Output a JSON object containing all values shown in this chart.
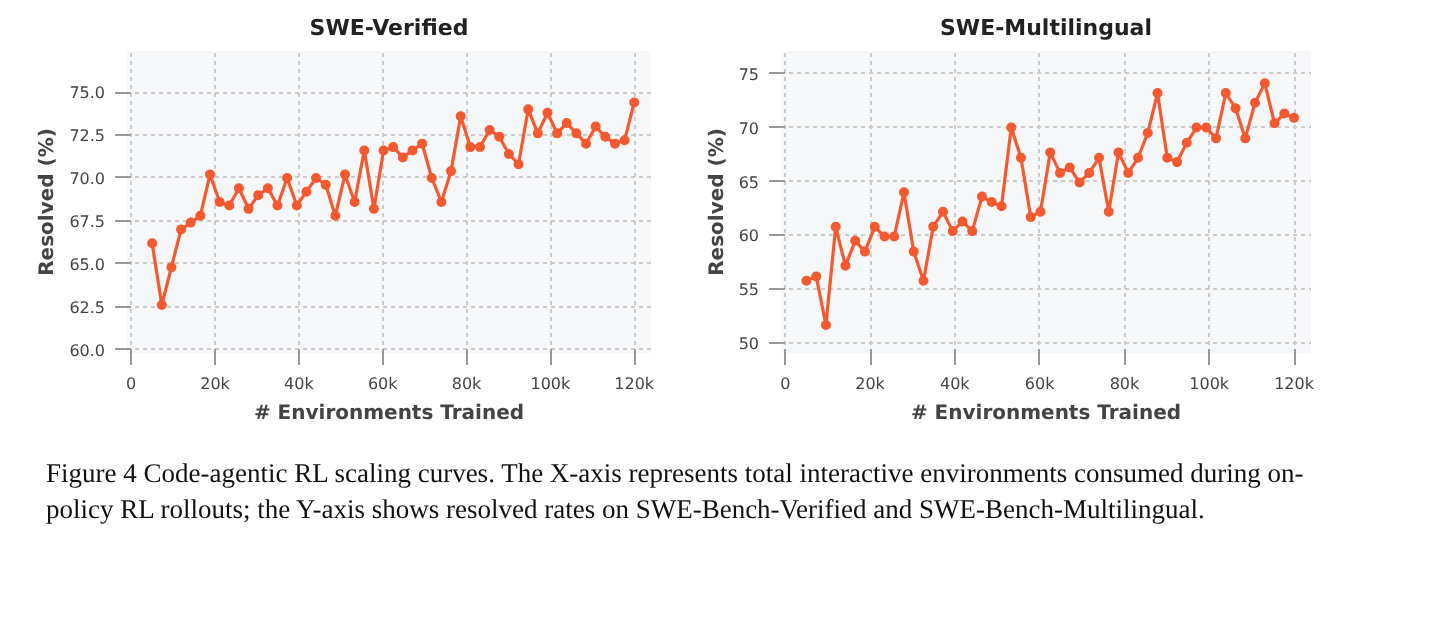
{
  "chart_data": [
    {
      "type": "line",
      "title": "SWE-Verified",
      "xlabel": "# Environments Trained",
      "ylabel": "Resolved (%)",
      "x": [
        5000,
        7300,
        9600,
        11900,
        14200,
        16500,
        18800,
        21100,
        23400,
        25700,
        28000,
        30300,
        32600,
        34900,
        37200,
        39500,
        41800,
        44100,
        46400,
        48700,
        51000,
        53300,
        55600,
        57900,
        60200,
        62500,
        64800,
        67100,
        69400,
        71700,
        74000,
        76300,
        78600,
        80900,
        83200,
        85500,
        87800,
        90100,
        92400,
        94700,
        97000,
        99300,
        101600,
        103900,
        106200,
        108500,
        110800,
        113100,
        115400,
        117700,
        120000
      ],
      "series": [
        {
          "color": "#f4592f",
          "values": [
            66.2,
            62.6,
            64.8,
            67.0,
            67.4,
            67.8,
            70.2,
            68.6,
            68.4,
            69.4,
            68.2,
            69.0,
            69.4,
            68.4,
            70.0,
            68.4,
            69.2,
            70.0,
            69.6,
            67.8,
            70.2,
            68.6,
            71.6,
            68.2,
            71.6,
            71.8,
            71.2,
            71.6,
            72.0,
            70.0,
            68.6,
            70.4,
            73.6,
            71.8,
            71.8,
            72.8,
            72.4,
            71.4,
            70.8,
            74.0,
            72.6,
            73.8,
            72.6,
            73.2,
            72.6,
            72.0,
            73.0,
            72.4,
            72.0,
            72.2,
            74.4
          ]
        }
      ],
      "xlim": [
        -1000,
        124000
      ],
      "ylim": [
        59.8,
        77.4
      ],
      "xticks": [
        0,
        {
          "value": 20000,
          "label": "20k"
        },
        {
          "value": 40000,
          "label": "40k"
        },
        {
          "value": 60000,
          "label": "60k"
        },
        {
          "value": 80000,
          "label": "80k"
        },
        {
          "value": 100000,
          "label": "100k"
        },
        {
          "value": 120000,
          "label": "120k"
        }
      ],
      "yticks": [
        {
          "value": 60,
          "label": "60.0"
        },
        {
          "value": 62.5,
          "label": "62.5"
        },
        {
          "value": 65,
          "label": "65.0"
        },
        {
          "value": 67.5,
          "label": "67.5"
        },
        {
          "value": 70,
          "label": "70.0"
        },
        {
          "value": 72.5,
          "label": "72.5"
        },
        {
          "value": 75,
          "label": "75.0"
        }
      ],
      "grid": true,
      "marker": "circle",
      "line_style": "solid",
      "annotations": [
        "Figure 4  Code-agentic RL scaling curves. The X-axis represents total interactive environments consumed during on-policy RL rollouts; the Y-axis shows resolved rates on SWE-Bench-Verified and SWE-Bench-Multilingual."
      ]
    },
    {
      "type": "line",
      "title": "SWE-Multilingual",
      "xlabel": "# Environments Trained",
      "ylabel": "Resolved (%)",
      "x": [
        5000,
        7300,
        9600,
        11900,
        14200,
        16500,
        18800,
        21100,
        23400,
        25700,
        28000,
        30300,
        32600,
        34900,
        37200,
        39500,
        41800,
        44100,
        46400,
        48700,
        51000,
        53300,
        55600,
        57900,
        60200,
        62500,
        64800,
        67100,
        69400,
        71700,
        74000,
        76300,
        78600,
        80900,
        83200,
        85500,
        87800,
        90100,
        92400,
        94700,
        97000,
        99300,
        101600,
        103900,
        106200,
        108500,
        110800,
        113100,
        115400,
        117700,
        120000
      ],
      "series": [
        {
          "color": "#f4592f",
          "values": [
            55.8,
            56.2,
            51.7,
            60.8,
            57.2,
            59.5,
            58.5,
            60.8,
            59.9,
            59.9,
            64.0,
            58.5,
            55.8,
            60.8,
            62.2,
            60.4,
            61.3,
            60.4,
            63.6,
            63.1,
            62.7,
            70.0,
            67.2,
            61.7,
            62.2,
            67.7,
            65.8,
            66.3,
            64.9,
            65.8,
            67.2,
            62.2,
            67.7,
            65.8,
            67.2,
            69.5,
            73.2,
            67.2,
            66.8,
            68.6,
            70.0,
            70.0,
            69.0,
            73.2,
            71.8,
            69.0,
            72.3,
            74.1,
            70.4,
            71.3,
            70.9
          ]
        }
      ],
      "xlim": [
        -1000,
        124000
      ],
      "ylim": [
        49.1,
        77.1
      ],
      "xticks": [
        0,
        {
          "value": 20000,
          "label": "20k"
        },
        {
          "value": 40000,
          "label": "40k"
        },
        {
          "value": 60000,
          "label": "60k"
        },
        {
          "value": 80000,
          "label": "80k"
        },
        {
          "value": 100000,
          "label": "100k"
        },
        {
          "value": 120000,
          "label": "120k"
        }
      ],
      "yticks": [
        50,
        55,
        60,
        65,
        70,
        75
      ],
      "grid": true,
      "marker": "circle",
      "line_style": "solid"
    }
  ]
}
